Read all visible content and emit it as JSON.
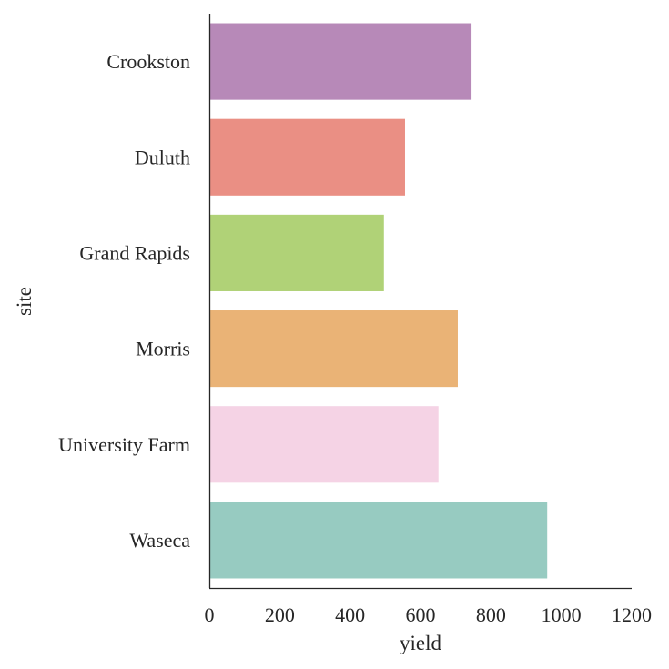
{
  "chart_data": {
    "type": "bar",
    "orientation": "horizontal",
    "xlabel": "yield",
    "ylabel": "site",
    "categories": [
      "Crookston",
      "Duluth",
      "Grand Rapids",
      "Morris",
      "University Farm",
      "Waseca"
    ],
    "values": [
      745,
      556,
      496,
      706,
      651,
      960
    ],
    "colors": [
      "#b789b8",
      "#ea8f84",
      "#b0d277",
      "#eab376",
      "#f5d3e5",
      "#97cbc1"
    ],
    "xlim": [
      0,
      1200
    ],
    "xticks": [
      0,
      200,
      400,
      600,
      800,
      1000,
      1200
    ],
    "grid": false,
    "legend": "none"
  }
}
